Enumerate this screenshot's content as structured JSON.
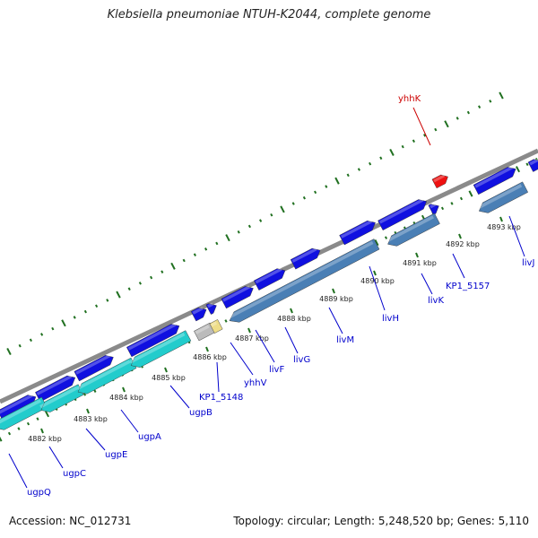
{
  "title": "Klebsiella pneumoniae NTUH-K2044, complete genome",
  "footer": {
    "accession": "Accession: NC_012731",
    "stats": "Topology: circular; Length: 5,248,520 bp; Genes: 5,110"
  },
  "colors": {
    "backbone": "#8a8a8a",
    "forward_gene": "#1010e0",
    "reverse_gene_blue": "#4a7fb5",
    "reverse_gene_cyan": "#22cccc",
    "highlight_gene": "#ee1111",
    "pseudo_gene_grey": "#bbbbbb",
    "pseudo_gene_yellow": "#eedd88",
    "tick": "#207020",
    "label_blue": "#0000cc",
    "label_red": "#cc0000"
  },
  "ticks": [
    "4882 kbp",
    "4883 kbp",
    "4884 kbp",
    "4885 kbp",
    "4886 kbp",
    "4887 kbp",
    "4888 kbp",
    "4889 kbp",
    "4890 kbp",
    "4891 kbp",
    "4892 kbp",
    "4893 kbp"
  ],
  "gene_labels": [
    {
      "name": "ugpQ",
      "color": "blue"
    },
    {
      "name": "ugpC",
      "color": "blue"
    },
    {
      "name": "ugpE",
      "color": "blue"
    },
    {
      "name": "ugpA",
      "color": "blue"
    },
    {
      "name": "ugpB",
      "color": "blue"
    },
    {
      "name": "KP1_5148",
      "color": "blue"
    },
    {
      "name": "yhhV",
      "color": "blue"
    },
    {
      "name": "livF",
      "color": "blue"
    },
    {
      "name": "livG",
      "color": "blue"
    },
    {
      "name": "livM",
      "color": "blue"
    },
    {
      "name": "livH",
      "color": "blue"
    },
    {
      "name": "livK",
      "color": "blue"
    },
    {
      "name": "KP1_5157",
      "color": "blue"
    },
    {
      "name": "livJ",
      "color": "blue"
    },
    {
      "name": "yhhK",
      "color": "red"
    }
  ]
}
